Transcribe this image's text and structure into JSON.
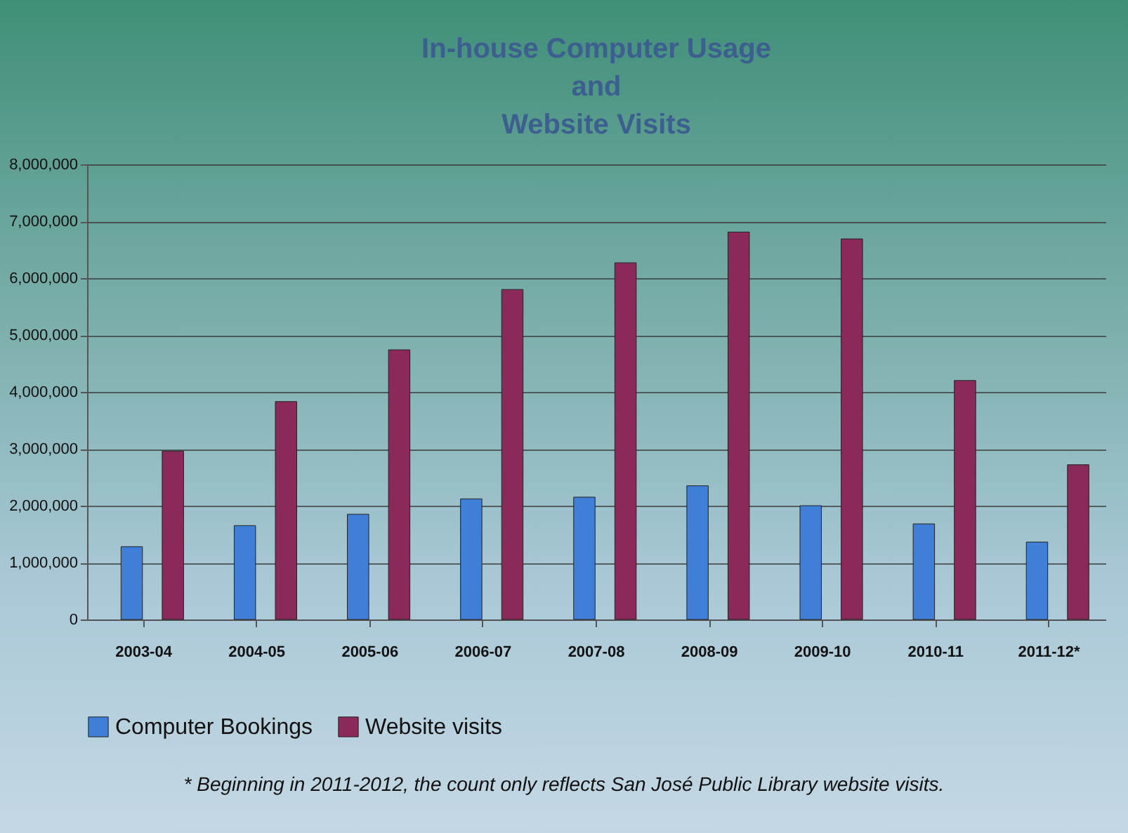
{
  "chart_data": {
    "type": "bar",
    "title": "In-house Computer Usage\nand\nWebsite Visits",
    "categories": [
      "2003-04",
      "2004-05",
      "2005-06",
      "2006-07",
      "2007-08",
      "2008-09",
      "2009-10",
      "2010-11",
      "2011-12*"
    ],
    "series": [
      {
        "name": "Computer Bookings",
        "color": "#3f7fd8",
        "values": [
          1280000,
          1650000,
          1850000,
          2120000,
          2150000,
          2350000,
          2000000,
          1680000,
          1360000
        ]
      },
      {
        "name": "Website visits",
        "color": "#8b2a5a",
        "values": [
          2960000,
          3830000,
          4740000,
          5800000,
          6270000,
          6810000,
          6690000,
          4200000,
          2720000
        ]
      }
    ],
    "ylim": [
      0,
      8000000
    ],
    "yticks": [
      0,
      {
        "value": 1000000,
        "label": "1,000,000"
      },
      {
        "value": 2000000,
        "label": "2,000,000"
      },
      {
        "value": 3000000,
        "label": "3,000,000"
      },
      {
        "value": 4000000,
        "label": "4,000,000"
      },
      {
        "value": 5000000,
        "label": "5,000,000"
      },
      {
        "value": 6000000,
        "label": "6,000,000"
      },
      {
        "value": 7000000,
        "label": "7,000,000"
      },
      {
        "value": 8000000,
        "label": "8,000,000"
      }
    ],
    "grid": "y",
    "legend": "bottom",
    "annotations": [
      "* Beginning in 2011-2012, the count only reflects San José Public Library website visits."
    ]
  }
}
